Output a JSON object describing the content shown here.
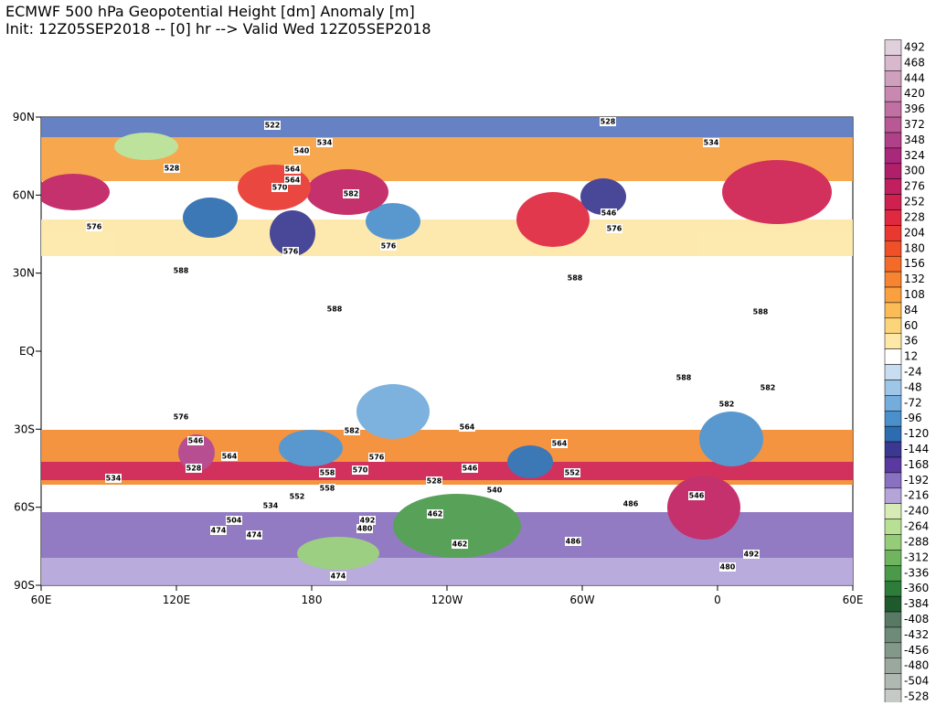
{
  "header": {
    "title": "ECMWF 500 hPa Geopotential Height [dm] Anomaly [m]",
    "subtitle": "Init: 12Z05SEP2018 -- [0] hr --> Valid Wed 12Z05SEP2018"
  },
  "map": {
    "lon_labels": [
      "60E",
      "120E",
      "180",
      "120W",
      "60W",
      "0",
      "60E"
    ],
    "lat_labels": [
      "90N",
      "60N",
      "30N",
      "EQ",
      "30S",
      "60S",
      "90S"
    ],
    "contour_labels": [
      522,
      534,
      528,
      534,
      540,
      528,
      576,
      570,
      564,
      582,
      576,
      576,
      588,
      588,
      564,
      546,
      576,
      588,
      588,
      588,
      582,
      576,
      546,
      528,
      564,
      582,
      564,
      570,
      576,
      558,
      552,
      534,
      564,
      558,
      552,
      546,
      540,
      534,
      528,
      492,
      480,
      474,
      462,
      462,
      486,
      504,
      474,
      486,
      474,
      480,
      492,
      546,
      582
    ],
    "colorbar": {
      "values": [
        492,
        468,
        444,
        420,
        396,
        372,
        348,
        324,
        300,
        276,
        252,
        228,
        204,
        180,
        156,
        132,
        108,
        84,
        60,
        36,
        12,
        -24,
        -48,
        -72,
        -96,
        -120,
        -144,
        -168,
        -192,
        -216,
        -240,
        -264,
        -288,
        -312,
        -336,
        -360,
        -384,
        -408,
        -432,
        -456,
        -480,
        -504,
        -528
      ],
      "colors": [
        "#e0d0dc",
        "#d8b8cc",
        "#cfa0bd",
        "#c888b0",
        "#c070a2",
        "#b85895",
        "#b04088",
        "#a8287a",
        "#b0206a",
        "#c02060",
        "#d02050",
        "#e02840",
        "#e83830",
        "#f05028",
        "#f46a28",
        "#f78430",
        "#f9a040",
        "#fbbc58",
        "#fcd47a",
        "#fde8a8",
        "#ffffff",
        "#c8def0",
        "#9ec6e8",
        "#74acdc",
        "#4a90cc",
        "#2c6cb0",
        "#3a3890",
        "#5a3aa0",
        "#8a70c0",
        "#b4a4d8",
        "#d6ecb4",
        "#b8e094",
        "#94cc78",
        "#70b460",
        "#4a9a4a",
        "#2e7c3a",
        "#1e5a2c",
        "#587a64",
        "#6e8a78",
        "#84988a",
        "#9aa89e",
        "#b0b8b2",
        "#c6cac6"
      ]
    }
  }
}
